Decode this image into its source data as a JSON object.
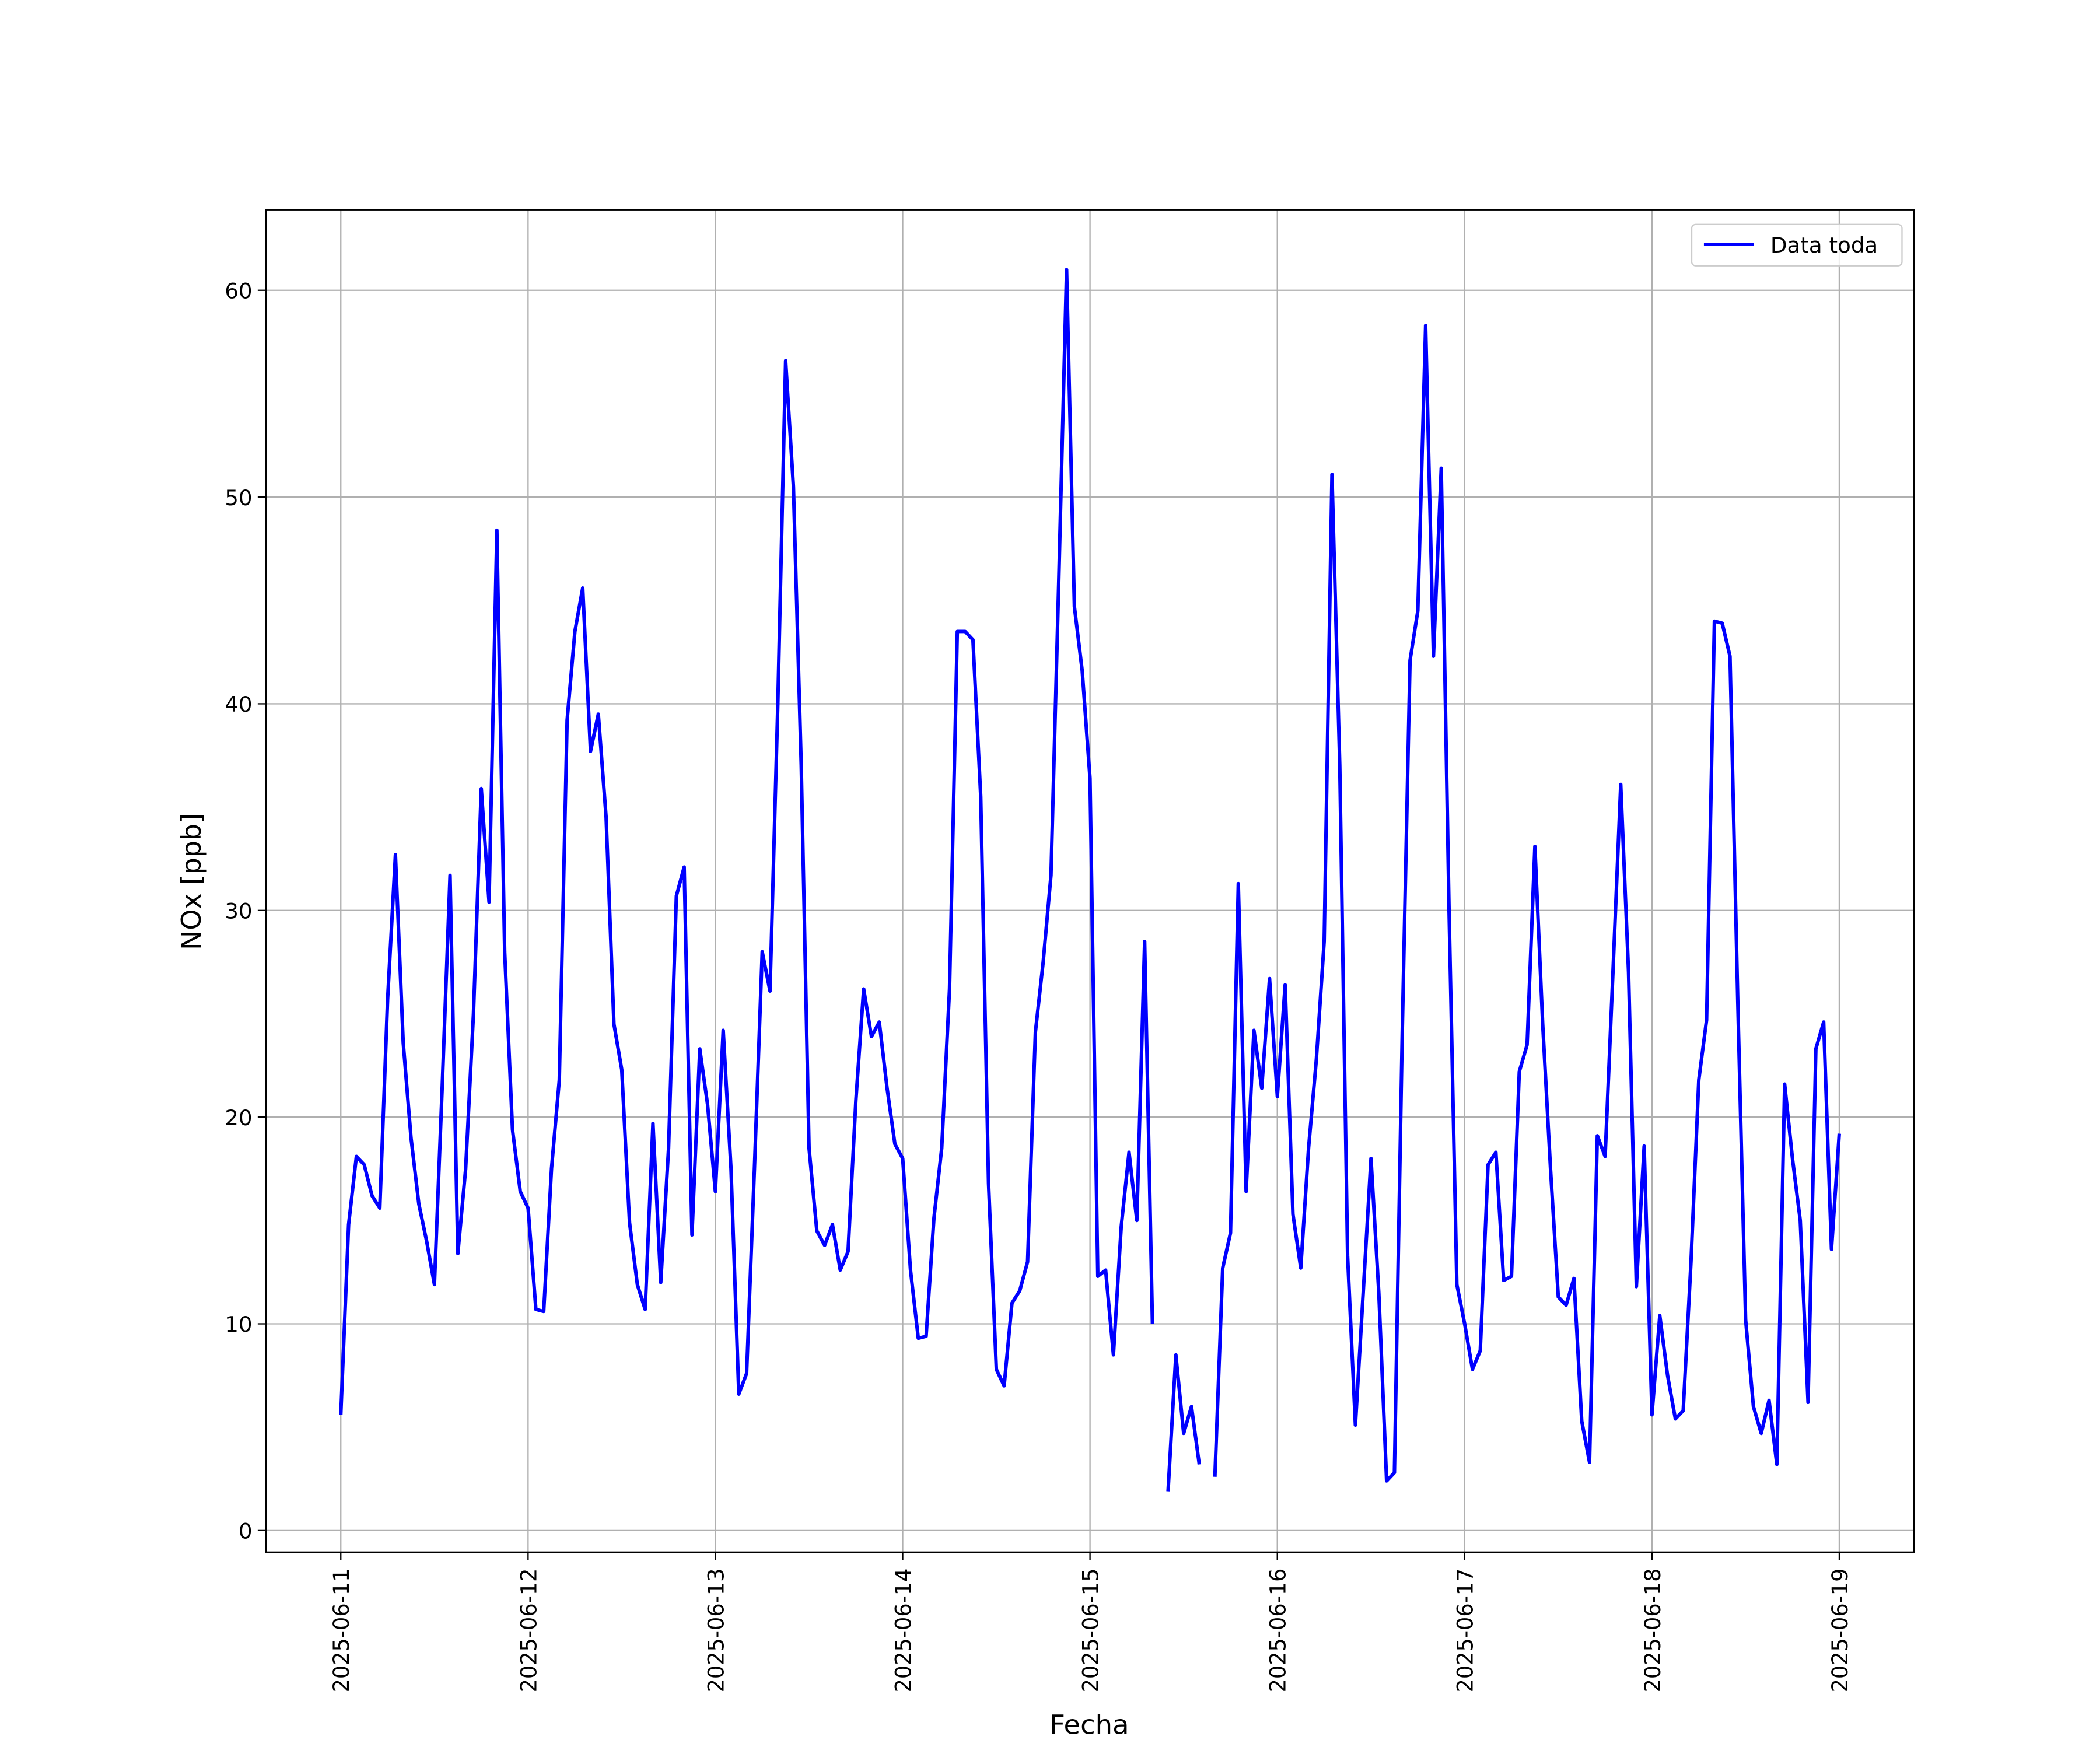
{
  "chart_data": {
    "type": "line",
    "xlabel": "Fecha",
    "ylabel": "NOx [ppb]",
    "x": [
      "2025-06-11 00:00",
      "2025-06-11 01:00",
      "2025-06-11 02:00",
      "2025-06-11 03:00",
      "2025-06-11 04:00",
      "2025-06-11 05:00",
      "2025-06-11 06:00",
      "2025-06-11 07:00",
      "2025-06-11 08:00",
      "2025-06-11 09:00",
      "2025-06-11 10:00",
      "2025-06-11 11:00",
      "2025-06-11 12:00",
      "2025-06-11 13:00",
      "2025-06-11 14:00",
      "2025-06-11 15:00",
      "2025-06-11 16:00",
      "2025-06-11 17:00",
      "2025-06-11 18:00",
      "2025-06-11 19:00",
      "2025-06-11 20:00",
      "2025-06-11 21:00",
      "2025-06-11 22:00",
      "2025-06-11 23:00",
      "2025-06-12 00:00",
      "2025-06-12 01:00",
      "2025-06-12 02:00",
      "2025-06-12 03:00",
      "2025-06-12 04:00",
      "2025-06-12 05:00",
      "2025-06-12 06:00",
      "2025-06-12 07:00",
      "2025-06-12 08:00",
      "2025-06-12 09:00",
      "2025-06-12 10:00",
      "2025-06-12 11:00",
      "2025-06-12 12:00",
      "2025-06-12 13:00",
      "2025-06-12 14:00",
      "2025-06-12 15:00",
      "2025-06-12 16:00",
      "2025-06-12 17:00",
      "2025-06-12 18:00",
      "2025-06-12 19:00",
      "2025-06-12 20:00",
      "2025-06-12 21:00",
      "2025-06-12 22:00",
      "2025-06-12 23:00",
      "2025-06-13 00:00",
      "2025-06-13 01:00",
      "2025-06-13 02:00",
      "2025-06-13 03:00",
      "2025-06-13 04:00",
      "2025-06-13 05:00",
      "2025-06-13 06:00",
      "2025-06-13 07:00",
      "2025-06-13 08:00",
      "2025-06-13 09:00",
      "2025-06-13 10:00",
      "2025-06-13 11:00",
      "2025-06-13 12:00",
      "2025-06-13 13:00",
      "2025-06-13 14:00",
      "2025-06-13 15:00",
      "2025-06-13 16:00",
      "2025-06-13 17:00",
      "2025-06-13 18:00",
      "2025-06-13 19:00",
      "2025-06-13 20:00",
      "2025-06-13 21:00",
      "2025-06-13 22:00",
      "2025-06-13 23:00",
      "2025-06-14 00:00",
      "2025-06-14 01:00",
      "2025-06-14 02:00",
      "2025-06-14 03:00",
      "2025-06-14 04:00",
      "2025-06-14 05:00",
      "2025-06-14 06:00",
      "2025-06-14 07:00",
      "2025-06-14 08:00",
      "2025-06-14 09:00",
      "2025-06-14 10:00",
      "2025-06-14 11:00",
      "2025-06-14 12:00",
      "2025-06-14 13:00",
      "2025-06-14 14:00",
      "2025-06-14 15:00",
      "2025-06-14 16:00",
      "2025-06-14 17:00",
      "2025-06-14 18:00",
      "2025-06-14 19:00",
      "2025-06-14 20:00",
      "2025-06-14 21:00",
      "2025-06-14 22:00",
      "2025-06-14 23:00",
      "2025-06-15 00:00",
      "2025-06-15 01:00",
      "2025-06-15 02:00",
      "2025-06-15 03:00",
      "2025-06-15 04:00",
      "2025-06-15 05:00",
      "2025-06-15 06:00",
      "2025-06-15 07:00",
      "2025-06-15 08:00",
      "2025-06-15 09:00",
      "2025-06-15 10:00",
      "2025-06-15 11:00",
      "2025-06-15 12:00",
      "2025-06-15 13:00",
      "2025-06-15 14:00",
      "2025-06-15 15:00",
      "2025-06-15 16:00",
      "2025-06-15 17:00",
      "2025-06-15 18:00",
      "2025-06-15 19:00",
      "2025-06-15 20:00",
      "2025-06-15 21:00",
      "2025-06-15 22:00",
      "2025-06-15 23:00",
      "2025-06-16 00:00",
      "2025-06-16 01:00",
      "2025-06-16 02:00",
      "2025-06-16 03:00",
      "2025-06-16 04:00",
      "2025-06-16 05:00",
      "2025-06-16 06:00",
      "2025-06-16 07:00",
      "2025-06-16 08:00",
      "2025-06-16 09:00",
      "2025-06-16 10:00",
      "2025-06-16 11:00",
      "2025-06-16 12:00",
      "2025-06-16 13:00",
      "2025-06-16 14:00",
      "2025-06-16 15:00",
      "2025-06-16 16:00",
      "2025-06-16 17:00",
      "2025-06-16 18:00",
      "2025-06-16 19:00",
      "2025-06-16 20:00",
      "2025-06-16 21:00",
      "2025-06-16 22:00",
      "2025-06-16 23:00",
      "2025-06-17 00:00",
      "2025-06-17 01:00",
      "2025-06-17 02:00",
      "2025-06-17 03:00",
      "2025-06-17 04:00",
      "2025-06-17 05:00",
      "2025-06-17 06:00",
      "2025-06-17 07:00",
      "2025-06-17 08:00",
      "2025-06-17 09:00",
      "2025-06-17 10:00",
      "2025-06-17 11:00",
      "2025-06-17 12:00",
      "2025-06-17 13:00",
      "2025-06-17 14:00",
      "2025-06-17 15:00",
      "2025-06-17 16:00",
      "2025-06-17 17:00",
      "2025-06-17 18:00",
      "2025-06-17 19:00",
      "2025-06-17 20:00",
      "2025-06-17 21:00",
      "2025-06-17 22:00",
      "2025-06-17 23:00",
      "2025-06-18 00:00",
      "2025-06-18 01:00",
      "2025-06-18 02:00",
      "2025-06-18 03:00",
      "2025-06-18 04:00",
      "2025-06-18 05:00",
      "2025-06-18 06:00",
      "2025-06-18 07:00",
      "2025-06-18 08:00",
      "2025-06-18 09:00",
      "2025-06-18 10:00",
      "2025-06-18 11:00",
      "2025-06-18 12:00",
      "2025-06-18 13:00",
      "2025-06-18 14:00",
      "2025-06-18 15:00",
      "2025-06-18 16:00",
      "2025-06-18 17:00",
      "2025-06-18 18:00",
      "2025-06-18 19:00",
      "2025-06-18 20:00",
      "2025-06-18 21:00",
      "2025-06-18 22:00",
      "2025-06-18 23:00",
      "2025-06-19 00:00"
    ],
    "series": [
      {
        "name": "Data toda",
        "color": "#0000ff",
        "values": [
          5.6,
          14.8,
          18.1,
          17.7,
          16.2,
          15.6,
          25.7,
          32.7,
          23.6,
          19,
          15.8,
          14,
          11.9,
          21.5,
          31.7,
          13.4,
          17.5,
          25,
          35.9,
          30.4,
          48.4,
          28,
          19.4,
          16.4,
          15.6,
          10.7,
          10.6,
          17.5,
          21.8,
          39.2,
          43.5,
          45.6,
          37.7,
          39.5,
          34.5,
          24.5,
          22.3,
          14.9,
          11.9,
          10.7,
          19.7,
          12,
          18.5,
          30.7,
          32.1,
          14.3,
          23.3,
          20.6,
          16.4,
          24.2,
          17.5,
          6.6,
          7.6,
          17.5,
          28,
          26.1,
          40,
          56.6,
          50.5,
          37,
          18.5,
          14.5,
          13.8,
          14.8,
          12.6,
          13.5,
          20.8,
          26.2,
          23.9,
          24.6,
          21.4,
          18.7,
          18,
          12.6,
          9.3,
          9.4,
          15.1,
          18.5,
          26.2,
          43.5,
          43.5,
          43.1,
          35.5,
          16.8,
          7.8,
          7,
          11,
          11.6,
          13,
          24.1,
          27.5,
          31.7,
          46,
          61,
          44.7,
          41.6,
          36.4,
          12.3,
          12.6,
          8.5,
          14.7,
          18.3,
          15,
          28.5,
          10,
          null,
          1.9,
          8.5,
          4.7,
          6,
          3.2,
          null,
          2.6,
          12.7,
          14.4,
          31.3,
          16.4,
          24.2,
          21.4,
          26.7,
          21,
          26.4,
          15.3,
          12.7,
          18.5,
          22.8,
          28.5,
          51.1,
          37,
          13.3,
          5.1,
          11.5,
          18,
          11.5,
          2.4,
          2.8,
          24,
          42.1,
          44.5,
          58.3,
          42.3,
          51.4,
          30,
          11.9,
          10,
          7.8,
          8.7,
          17.7,
          18.3,
          12.1,
          12.3,
          22.2,
          23.5,
          33.1,
          24.5,
          17.5,
          11.3,
          10.9,
          12.2,
          5.3,
          3.3,
          19.1,
          18.1,
          27,
          36.1,
          27,
          11.8,
          18.6,
          5.6,
          10.4,
          7.5,
          5.4,
          5.8,
          13,
          21.8,
          24.7,
          44,
          43.9,
          42.3,
          25.5,
          10.2,
          6,
          4.7,
          6.3,
          3.2,
          21.6,
          18,
          15,
          6.2,
          23.3,
          24.6,
          13.6,
          19.2
        ]
      }
    ],
    "xlim": [
      "2025-06-10 14:24",
      "2025-06-19 09:36"
    ],
    "xticks": [
      "2025-06-11",
      "2025-06-12",
      "2025-06-13",
      "2025-06-14",
      "2025-06-15",
      "2025-06-16",
      "2025-06-17",
      "2025-06-18",
      "2025-06-19"
    ],
    "ylim": [
      -1.05,
      63.9
    ],
    "yticks": [
      0,
      10,
      20,
      30,
      40,
      50,
      60
    ],
    "grid": true,
    "legend": "upper right"
  }
}
